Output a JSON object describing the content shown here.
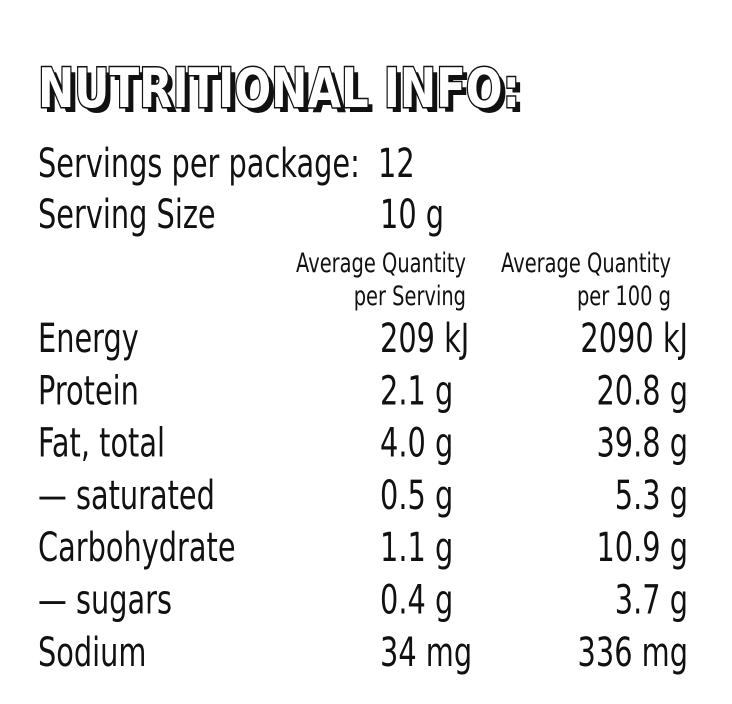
{
  "title": "NUTRITIONAL INFO:",
  "servings": {
    "label": "Servings per package:",
    "value": "12"
  },
  "serving_size": {
    "label": "Serving Size",
    "value": "10 g"
  },
  "table": {
    "headers": [
      [
        "Average Quantity",
        "per Serving"
      ],
      [
        "Average Quantity",
        "per 100 g"
      ]
    ],
    "rows": [
      [
        "Energy",
        "209 kJ",
        "2090 kJ"
      ],
      [
        "Protein",
        "2.1 g",
        "20.8 g"
      ],
      [
        "Fat, total",
        "4.0 g",
        "39.8 g"
      ],
      [
        "— saturated",
        "0.5 g",
        "5.3 g"
      ],
      [
        "Carbohydrate",
        "1.1 g",
        "10.9 g"
      ],
      [
        "— sugars",
        "0.4 g",
        "3.7 g"
      ],
      [
        "Sodium",
        "34 mg",
        "336 mg"
      ]
    ]
  }
}
